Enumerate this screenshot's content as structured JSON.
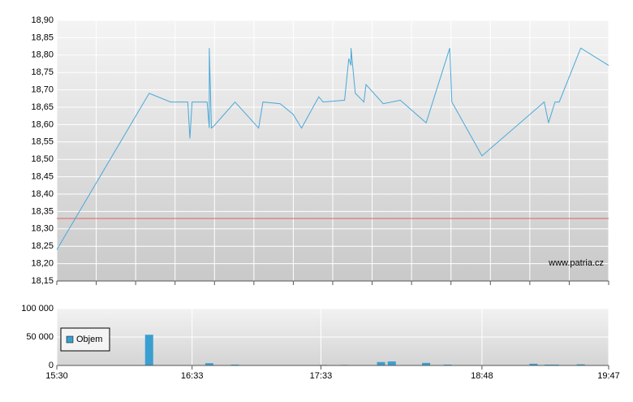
{
  "chart_data": [
    {
      "type": "line",
      "annotation": "www.patria.cz",
      "x": [
        "15:30",
        "16:13",
        "16:23",
        "16:31",
        "16:32",
        "16:33",
        "16:40",
        "16:41",
        "16:41",
        "16:42",
        "16:43",
        "16:53",
        "17:04",
        "17:06",
        "17:14",
        "17:20",
        "17:24",
        "17:32",
        "17:34",
        "17:44",
        "17:46",
        "17:47",
        "17:47",
        "17:49",
        "17:53",
        "17:54",
        "18:02",
        "18:10",
        "18:22",
        "18:33",
        "18:34",
        "18:48",
        "19:17",
        "19:19",
        "19:22",
        "19:24",
        "19:34",
        "19:47"
      ],
      "series": [
        {
          "color": "#4aa8d8",
          "values": [
            18.24,
            18.69,
            18.665,
            18.665,
            18.56,
            18.665,
            18.665,
            18.59,
            18.82,
            18.59,
            18.595,
            18.665,
            18.59,
            18.665,
            18.66,
            18.63,
            18.59,
            18.68,
            18.665,
            18.67,
            18.79,
            18.77,
            18.82,
            18.69,
            18.665,
            18.715,
            18.66,
            18.67,
            18.605,
            18.82,
            18.665,
            18.51,
            18.665,
            18.605,
            18.665,
            18.665,
            18.82,
            18.77
          ]
        }
      ],
      "reference_line": {
        "value": 18.33,
        "color": "#e06060"
      },
      "xlim": [
        "15:30",
        "19:47"
      ],
      "ylim": [
        18.15,
        18.9
      ],
      "yticks": [
        {
          "value": 18.15,
          "label": "18,15"
        },
        {
          "value": 18.2,
          "label": "18,20"
        },
        {
          "value": 18.25,
          "label": "18,25"
        },
        {
          "value": 18.3,
          "label": "18,30"
        },
        {
          "value": 18.35,
          "label": "18,35"
        },
        {
          "value": 18.4,
          "label": "18,40"
        },
        {
          "value": 18.45,
          "label": "18,45"
        },
        {
          "value": 18.5,
          "label": "18,50"
        },
        {
          "value": 18.55,
          "label": "18,55"
        },
        {
          "value": 18.6,
          "label": "18,60"
        },
        {
          "value": 18.65,
          "label": "18,65"
        },
        {
          "value": 18.7,
          "label": "18,70"
        },
        {
          "value": 18.75,
          "label": "18,75"
        },
        {
          "value": 18.8,
          "label": "18,80"
        },
        {
          "value": 18.85,
          "label": "18,85"
        },
        {
          "value": 18.9,
          "label": "18,90"
        }
      ],
      "grid": true
    },
    {
      "type": "bar",
      "x": [
        "16:13",
        "16:41",
        "16:53",
        "17:34",
        "17:44",
        "18:01",
        "18:06",
        "18:22",
        "18:32",
        "19:12",
        "19:19",
        "19:22",
        "19:34"
      ],
      "series": [
        {
          "name": "Objem",
          "color": "#3a9fd0",
          "values": [
            54000,
            4000,
            1500,
            1000,
            1000,
            6000,
            7000,
            4500,
            1500,
            3000,
            1500,
            1500,
            2000
          ]
        }
      ],
      "xlim": [
        "15:30",
        "19:47"
      ],
      "xticks": [
        "15:30",
        "16:33",
        "17:33",
        "18:48",
        "19:47"
      ],
      "ylim": [
        0,
        100000
      ],
      "yticks": [
        0,
        {
          "value": 50000,
          "label": "50 000"
        },
        {
          "value": 100000,
          "label": "100 000"
        }
      ],
      "legend": "upper left",
      "grid": true
    }
  ]
}
